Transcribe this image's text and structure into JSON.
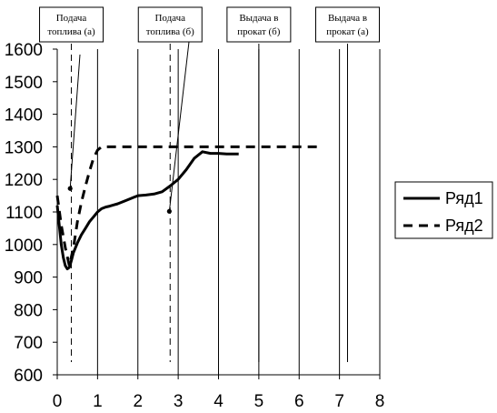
{
  "chart_data": {
    "type": "line",
    "xlim": [
      0,
      8
    ],
    "ylim": [
      600,
      1600
    ],
    "x_ticks": [
      "0",
      "1",
      "2",
      "3",
      "4",
      "5",
      "6",
      "7",
      "8"
    ],
    "y_ticks": [
      "600",
      "700",
      "800",
      "900",
      "1000",
      "1100",
      "1200",
      "1300",
      "1400",
      "1500",
      "1600"
    ],
    "x_tick_values": [
      0,
      1,
      2,
      3,
      4,
      5,
      6,
      7,
      8
    ],
    "y_tick_values": [
      600,
      700,
      800,
      900,
      1000,
      1100,
      1200,
      1300,
      1400,
      1500,
      1600
    ],
    "grid": "vertical",
    "legend_position": "right",
    "series": [
      {
        "name": "Ряд1",
        "style": "solid",
        "x": [
          0.0,
          0.05,
          0.1,
          0.15,
          0.2,
          0.25,
          0.3,
          0.35,
          0.4,
          0.5,
          0.6,
          0.7,
          0.8,
          0.9,
          1.0,
          1.1,
          1.2,
          1.3,
          1.5,
          1.7,
          1.9,
          2.0,
          2.2,
          2.4,
          2.6,
          2.8,
          3.0,
          3.2,
          3.4,
          3.6,
          3.8,
          4.0,
          4.2,
          4.5
        ],
        "y": [
          1120,
          1060,
          1000,
          960,
          935,
          925,
          930,
          950,
          975,
          1005,
          1030,
          1050,
          1070,
          1085,
          1100,
          1110,
          1115,
          1118,
          1125,
          1135,
          1145,
          1150,
          1152,
          1155,
          1162,
          1180,
          1200,
          1230,
          1265,
          1285,
          1280,
          1280,
          1278,
          1278
        ]
      },
      {
        "name": "Ряд2",
        "style": "dashed",
        "x": [
          0.0,
          0.1,
          0.2,
          0.3,
          0.4,
          0.5,
          0.6,
          0.7,
          0.8,
          0.9,
          1.0,
          1.1,
          1.2,
          1.5,
          2.0,
          3.0,
          4.0,
          5.0,
          6.0,
          6.5
        ],
        "y": [
          1150,
          1060,
          990,
          935,
          990,
          1070,
          1130,
          1180,
          1225,
          1265,
          1290,
          1300,
          1300,
          1300,
          1300,
          1300,
          1300,
          1300,
          1300,
          1300
        ]
      }
    ],
    "markers": [
      {
        "x": 0.32,
        "y": 1172
      },
      {
        "x": 2.78,
        "y": 1102
      }
    ],
    "event_lines": [
      {
        "x": 0.35,
        "style": "dashed",
        "label_line1": "Подача",
        "label_line2": "топлива (а)"
      },
      {
        "x": 2.8,
        "style": "dashed",
        "label_line1": "Подача",
        "label_line2": "топлива (б)"
      },
      {
        "x": 5.0,
        "style": "solid",
        "label_line1": "Выдача в",
        "label_line2": "прокат (б)"
      },
      {
        "x": 7.2,
        "style": "solid",
        "label_line1": "Выдача в",
        "label_line2": "прокат (а)"
      }
    ]
  }
}
